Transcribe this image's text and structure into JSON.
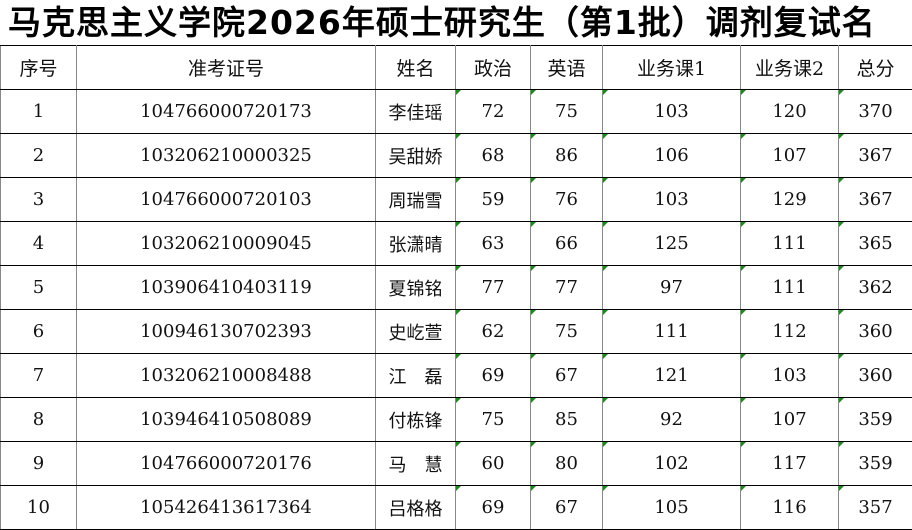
{
  "title": "马克思主义学院2026年硕士研究生（第1批）调剂复试名",
  "headers": [
    "序号",
    "准考证号",
    "姓名",
    "政治",
    "英语",
    "业务课1",
    "业务课2",
    "总分"
  ],
  "rows": [
    [
      "1",
      "104766000720173",
      "李佳瑶",
      "72",
      "75",
      "103",
      "120",
      "370"
    ],
    [
      "2",
      "103206210000325",
      "吴甜娇",
      "68",
      "86",
      "106",
      "107",
      "367"
    ],
    [
      "3",
      "104766000720103",
      "周瑞雪",
      "59",
      "76",
      "103",
      "129",
      "367"
    ],
    [
      "4",
      "103206210009045",
      "张潇晴",
      "63",
      "66",
      "125",
      "111",
      "365"
    ],
    [
      "5",
      "103906410403119",
      "夏锦铭",
      "77",
      "77",
      "97",
      "111",
      "362"
    ],
    [
      "6",
      "100946130702393",
      "史屹萱",
      "62",
      "75",
      "111",
      "112",
      "360"
    ],
    [
      "7",
      "103206210008488",
      "江　磊",
      "69",
      "67",
      "121",
      "103",
      "360"
    ],
    [
      "8",
      "103946410508089",
      "付栋锋",
      "75",
      "85",
      "92",
      "107",
      "359"
    ],
    [
      "9",
      "104766000720176",
      "马　慧",
      "60",
      "80",
      "102",
      "117",
      "359"
    ],
    [
      "10",
      "105426413617364",
      "吕格格",
      "69",
      "67",
      "105",
      "116",
      "357"
    ]
  ],
  "colors": {
    "error_indicator": "#1a8a1a"
  }
}
